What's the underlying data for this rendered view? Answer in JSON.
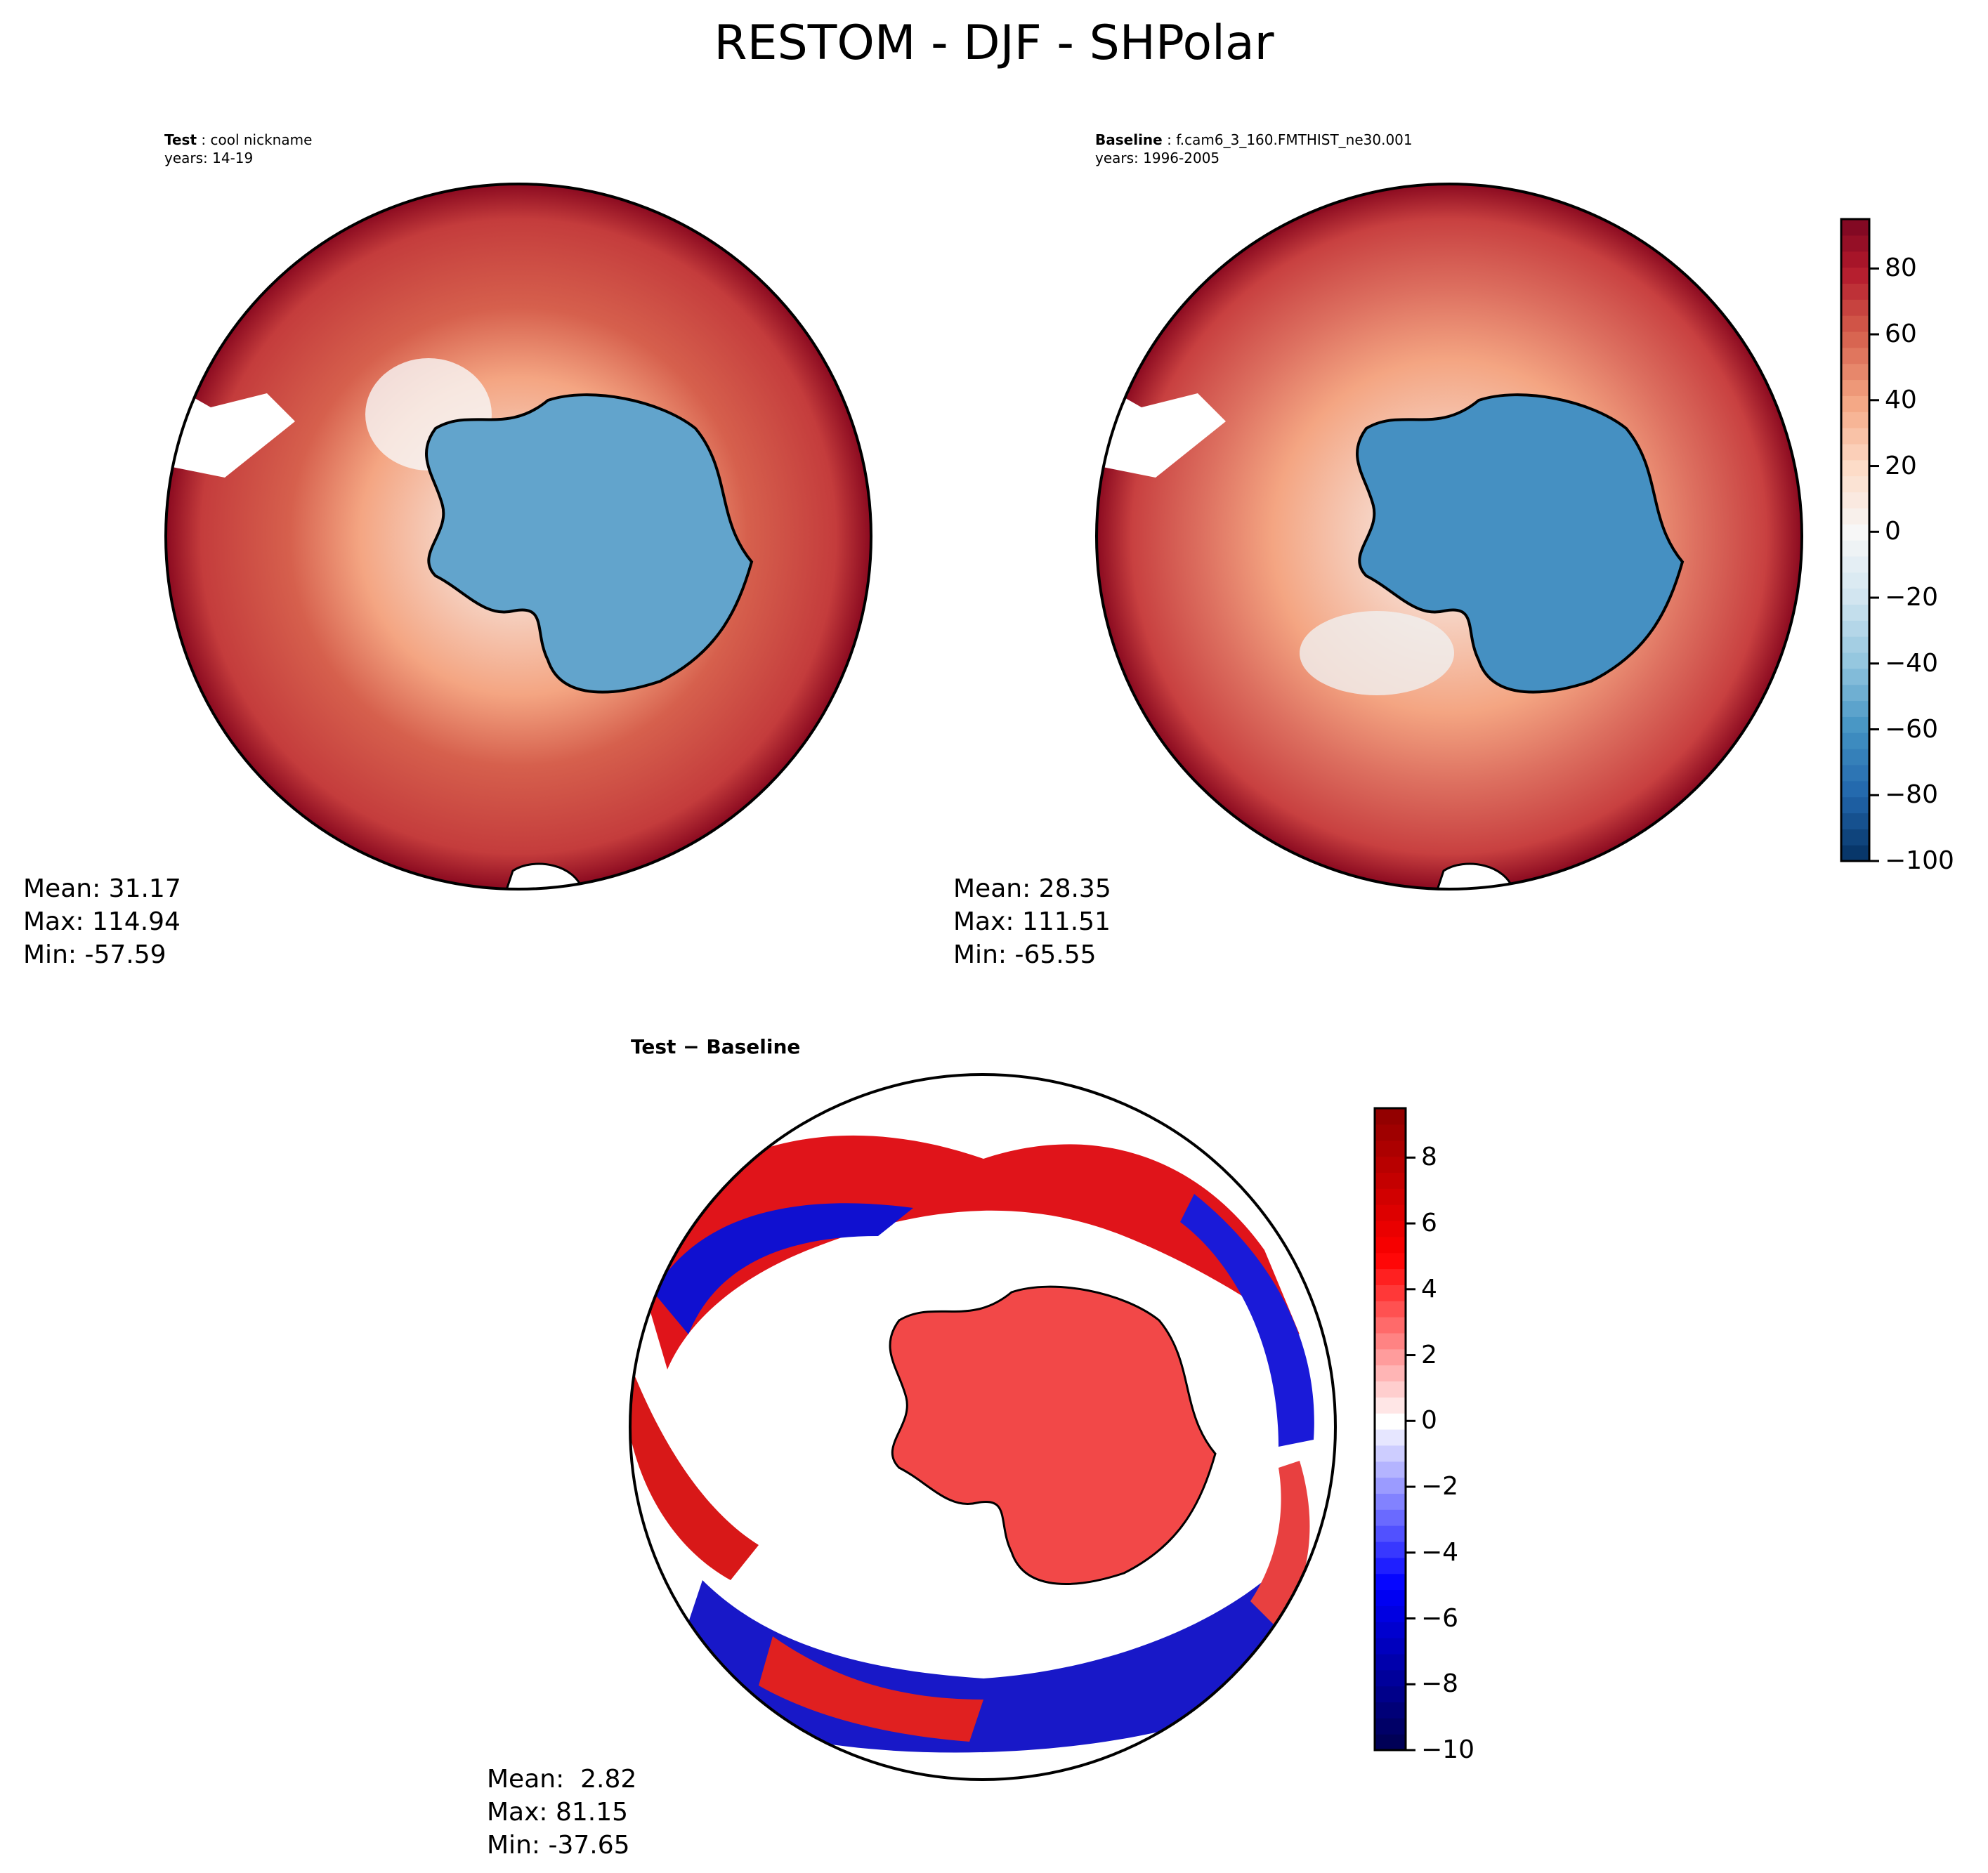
{
  "title": "RESTOM - DJF - SHPolar",
  "panels": [
    {
      "label": "Test",
      "name": "cool nickname",
      "years": "years: 14-19",
      "stats": {
        "mean": "Mean: 31.17",
        "max": "Max: 114.94",
        "min": "Min: -57.59"
      }
    },
    {
      "label": "Baseline",
      "name": "f.cam6_3_160.FMTHIST_ne30.001",
      "years": "years: 1996-2005",
      "stats": {
        "mean": "Mean: 28.35",
        "max": "Max: 111.51",
        "min": "Min: -65.55"
      }
    },
    {
      "label": "Test − Baseline",
      "stats": {
        "mean": "Mean:  2.82",
        "max": "Max: 81.15",
        "min": "Min: -37.65"
      }
    }
  ],
  "chart_data": [
    {
      "type": "heatmap",
      "projection": "south polar stereographic",
      "colormap": "RdBu_r",
      "clim": [
        -100,
        95
      ],
      "ticks": [
        "80",
        "60",
        "40",
        "20",
        "0",
        "−20",
        "−40",
        "−60",
        "−80",
        "−100"
      ],
      "tick_values": [
        80,
        60,
        40,
        20,
        0,
        -20,
        -40,
        -60,
        -80,
        -100
      ]
    },
    {
      "type": "heatmap",
      "projection": "south polar stereographic",
      "colormap": "seismic",
      "clim": [
        -10,
        9.5
      ],
      "ticks": [
        "8",
        "6",
        "4",
        "2",
        "0",
        "−2",
        "−4",
        "−6",
        "−8",
        "−10"
      ],
      "tick_values": [
        8,
        6,
        4,
        2,
        0,
        -2,
        -4,
        -6,
        -8,
        -10
      ]
    }
  ]
}
